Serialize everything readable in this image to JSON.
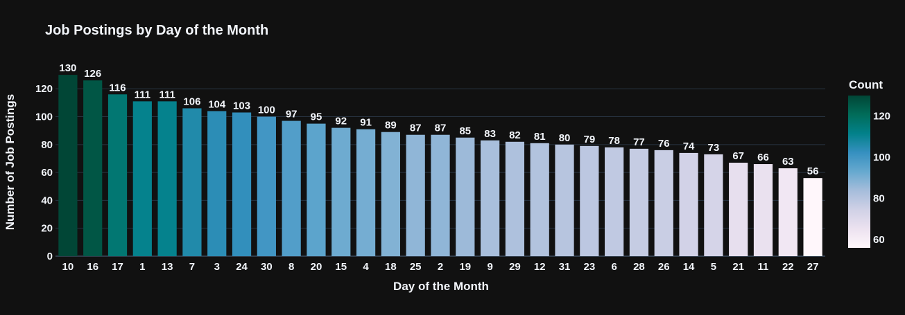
{
  "chart_data": {
    "type": "bar",
    "title": "Job Postings by Day of the Month",
    "xlabel": "Day of the Month",
    "ylabel": "Number of Job Postings",
    "categories": [
      "10",
      "16",
      "17",
      "1",
      "13",
      "7",
      "3",
      "24",
      "30",
      "8",
      "20",
      "15",
      "4",
      "18",
      "25",
      "2",
      "19",
      "9",
      "29",
      "12",
      "31",
      "23",
      "6",
      "28",
      "26",
      "14",
      "5",
      "21",
      "11",
      "22",
      "27"
    ],
    "values": [
      130,
      126,
      116,
      111,
      111,
      106,
      104,
      103,
      100,
      97,
      95,
      92,
      91,
      89,
      87,
      87,
      85,
      83,
      82,
      81,
      80,
      79,
      78,
      77,
      76,
      74,
      73,
      67,
      66,
      63,
      56
    ],
    "ylim": [
      0,
      136
    ],
    "yticks": [
      0,
      20,
      40,
      60,
      80,
      100,
      120
    ],
    "grid": true,
    "legend": "none",
    "colorbar": {
      "title": "Count",
      "ticks": [
        60,
        80,
        100,
        120
      ],
      "range": [
        56,
        130
      ],
      "placement": "right"
    },
    "colors": {
      "background": "#111111",
      "grid": "#283442",
      "text": "#f2f5fa",
      "scale": [
        "#fff7fb",
        "#ece2f0",
        "#d0d1e6",
        "#a6bddb",
        "#67a9cf",
        "#3690c0",
        "#02818a",
        "#016c59",
        "#014636"
      ]
    }
  }
}
